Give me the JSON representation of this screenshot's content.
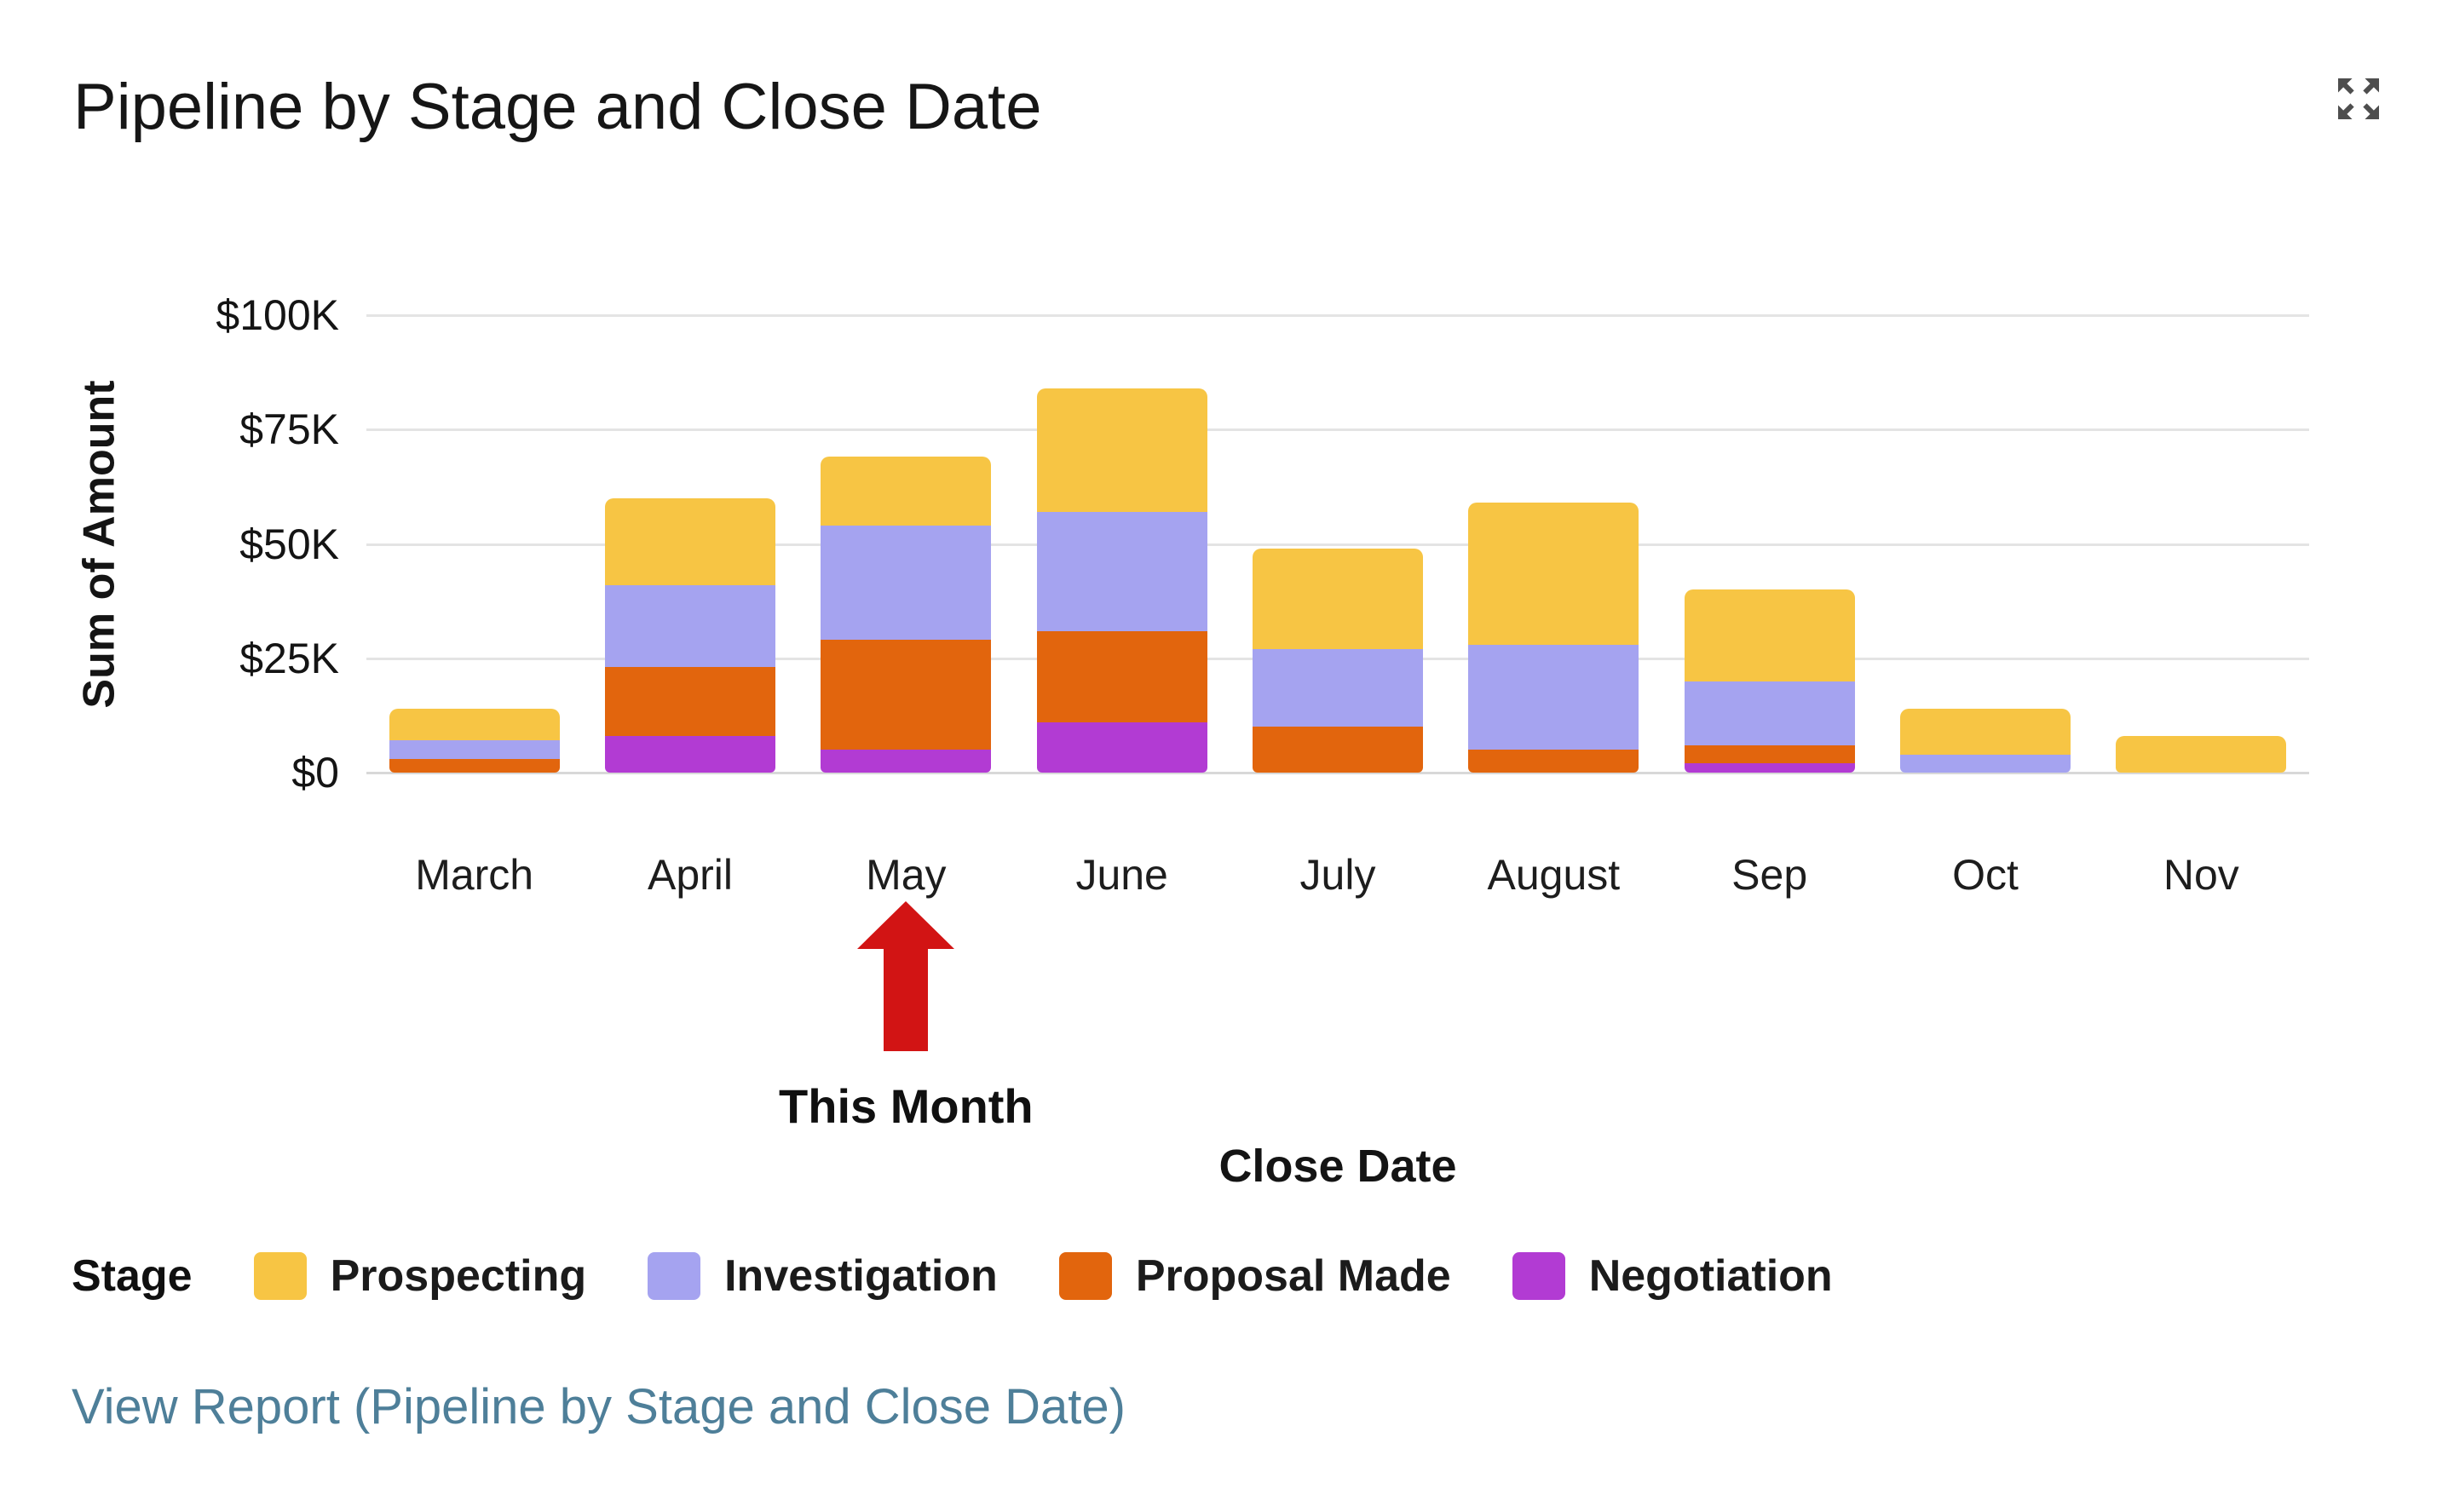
{
  "header": {
    "title": "Pipeline by Stage and Close Date"
  },
  "chart_data": {
    "type": "bar",
    "stacked": true,
    "title": "Pipeline by Stage and Close Date",
    "categories": [
      "March",
      "April",
      "May",
      "June",
      "July",
      "August",
      "Sep",
      "Oct",
      "Nov"
    ],
    "series": [
      {
        "name": "Prospecting",
        "color": "#F7C544",
        "values": [
          7000,
          19000,
          15000,
          27000,
          22000,
          31000,
          20000,
          10000,
          8000
        ]
      },
      {
        "name": "Investigation",
        "color": "#A5A3F0",
        "values": [
          4000,
          18000,
          25000,
          26000,
          17000,
          23000,
          14000,
          4000,
          0
        ]
      },
      {
        "name": "Proposal Made",
        "color": "#E2650D",
        "values": [
          3000,
          15000,
          24000,
          20000,
          10000,
          5000,
          4000,
          0,
          0
        ]
      },
      {
        "name": "Negotiation",
        "color": "#B23BD3",
        "values": [
          0,
          8000,
          5000,
          11000,
          0,
          0,
          2000,
          0,
          0
        ]
      }
    ],
    "stack_order": "first series on top",
    "xlabel": "Close Date",
    "ylabel": "Sum of Amount",
    "ylim": [
      0,
      100000
    ],
    "y_ticks": [
      {
        "label": "$0",
        "value": 0
      },
      {
        "label": "$25K",
        "value": 25000
      },
      {
        "label": "$50K",
        "value": 50000
      },
      {
        "label": "$75K",
        "value": 75000
      },
      {
        "label": "$100K",
        "value": 100000
      }
    ],
    "grid": true,
    "legend_title": "Stage",
    "legend_position": "bottom"
  },
  "annotation": {
    "label": "This Month",
    "points_to": "May",
    "arrow_color": "#D21414"
  },
  "footer": {
    "view_report_label": "View Report (Pipeline by Stage and Close Date)",
    "link_color": "#4E7F99"
  }
}
